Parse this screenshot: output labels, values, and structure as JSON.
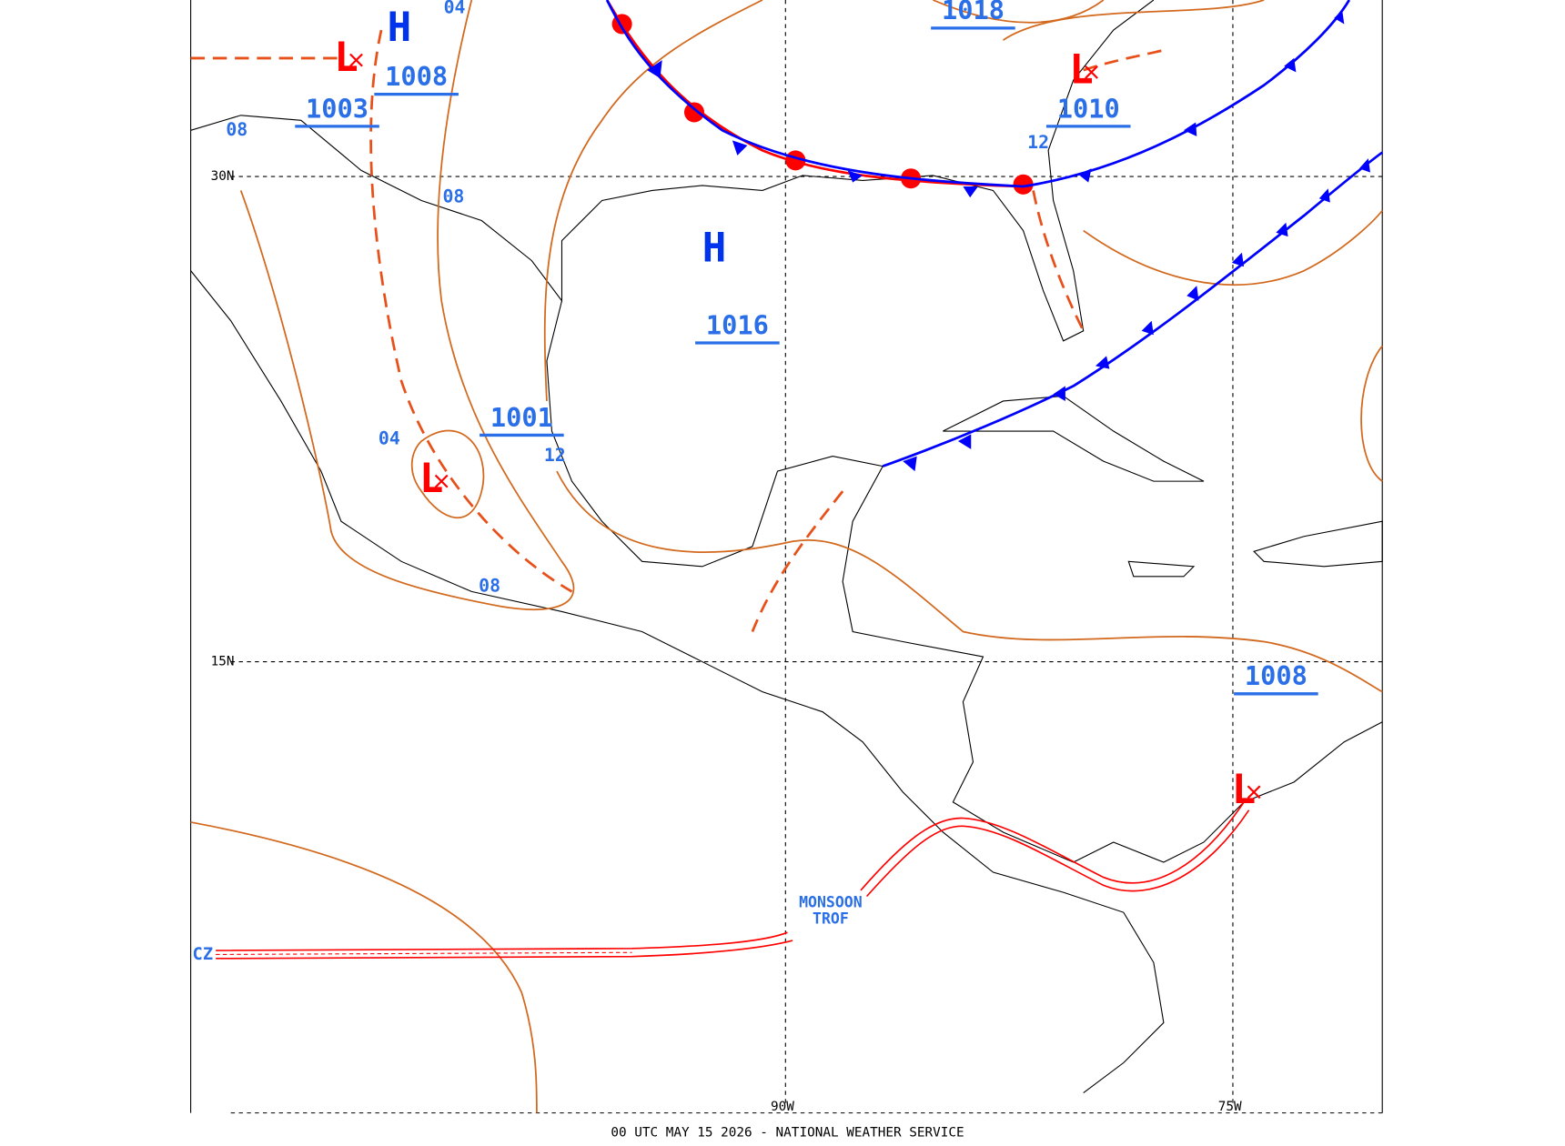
{
  "map": {
    "footer": "00 UTC MAY 15 2026 - NATIONAL WEATHER SERVICE",
    "grid_labels": [
      "30N",
      "15N",
      "90W",
      "75W"
    ],
    "pressure_centers": [
      {
        "symbol": "H",
        "pressure": "1008"
      },
      {
        "symbol": "L",
        "pressure": "1003"
      },
      {
        "symbol": "L",
        "pressure": "1010"
      },
      {
        "symbol": "H",
        "pressure": "1016"
      },
      {
        "symbol": "L",
        "pressure": "1001"
      },
      {
        "symbol": "L",
        "pressure": "1008"
      }
    ],
    "high_pressure_label": "1018",
    "isobar_labels": [
      "04",
      "08",
      "08",
      "04",
      "12",
      "08",
      "12"
    ],
    "itcz_label": "CZ",
    "monsoon_label": [
      "MONSOON",
      "TROF"
    ]
  }
}
